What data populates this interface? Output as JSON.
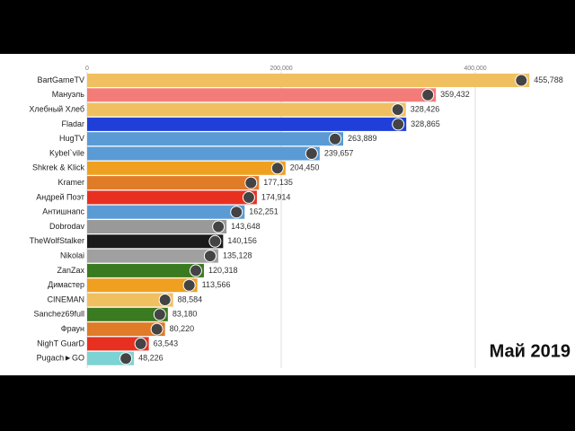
{
  "chart_data": {
    "type": "bar",
    "orientation": "horizontal",
    "date_label": "Май 2019",
    "categories": [
      "BartGameTV",
      "Мануэль",
      "Хлебный Хлеб",
      "Fladar",
      "HugTV",
      "Kybel`vile",
      "Shkrek & Klick",
      "Kramer",
      "Андрей Поэт",
      "Антишнапс",
      "Dobrodav",
      "TheWolfStalker",
      "Nikolai",
      "ZanZax",
      "Димастер",
      "CINEMAN",
      "Sanchez69full",
      "Фраун",
      "NighT GuarD",
      "Pugach►GO"
    ],
    "values": [
      455788,
      359432,
      328426,
      328865,
      263889,
      239657,
      204450,
      177135,
      174914,
      162251,
      143648,
      140156,
      135128,
      120318,
      113566,
      88584,
      83180,
      80220,
      63543,
      48226
    ],
    "value_labels": [
      "455,788",
      "359,432",
      "328,426",
      "328,865",
      "263,889",
      "239,657",
      "204,450",
      "177,135",
      "174,914",
      "162,251",
      "143,648",
      "140,156",
      "135,128",
      "120,318",
      "113,566",
      "88,584",
      "83,180",
      "80,220",
      "63,543",
      "48,226"
    ],
    "colors": [
      "#f0c060",
      "#f47c78",
      "#f0c060",
      "#1f3fd8",
      "#5a9bd5",
      "#5a9bd5",
      "#f0a020",
      "#e07b28",
      "#e83020",
      "#5a9bd5",
      "#999999",
      "#1a1a1a",
      "#a0a0a0",
      "#3a7a20",
      "#f0a020",
      "#f0c060",
      "#3a7a20",
      "#e07b28",
      "#e83020",
      "#7dd3d3"
    ],
    "xlim": [
      0,
      500000
    ],
    "xticks": [
      0,
      {
        "value": 200000,
        "label": "200,000"
      },
      {
        "value": 400000,
        "label": "400,000"
      }
    ],
    "grid": true
  }
}
